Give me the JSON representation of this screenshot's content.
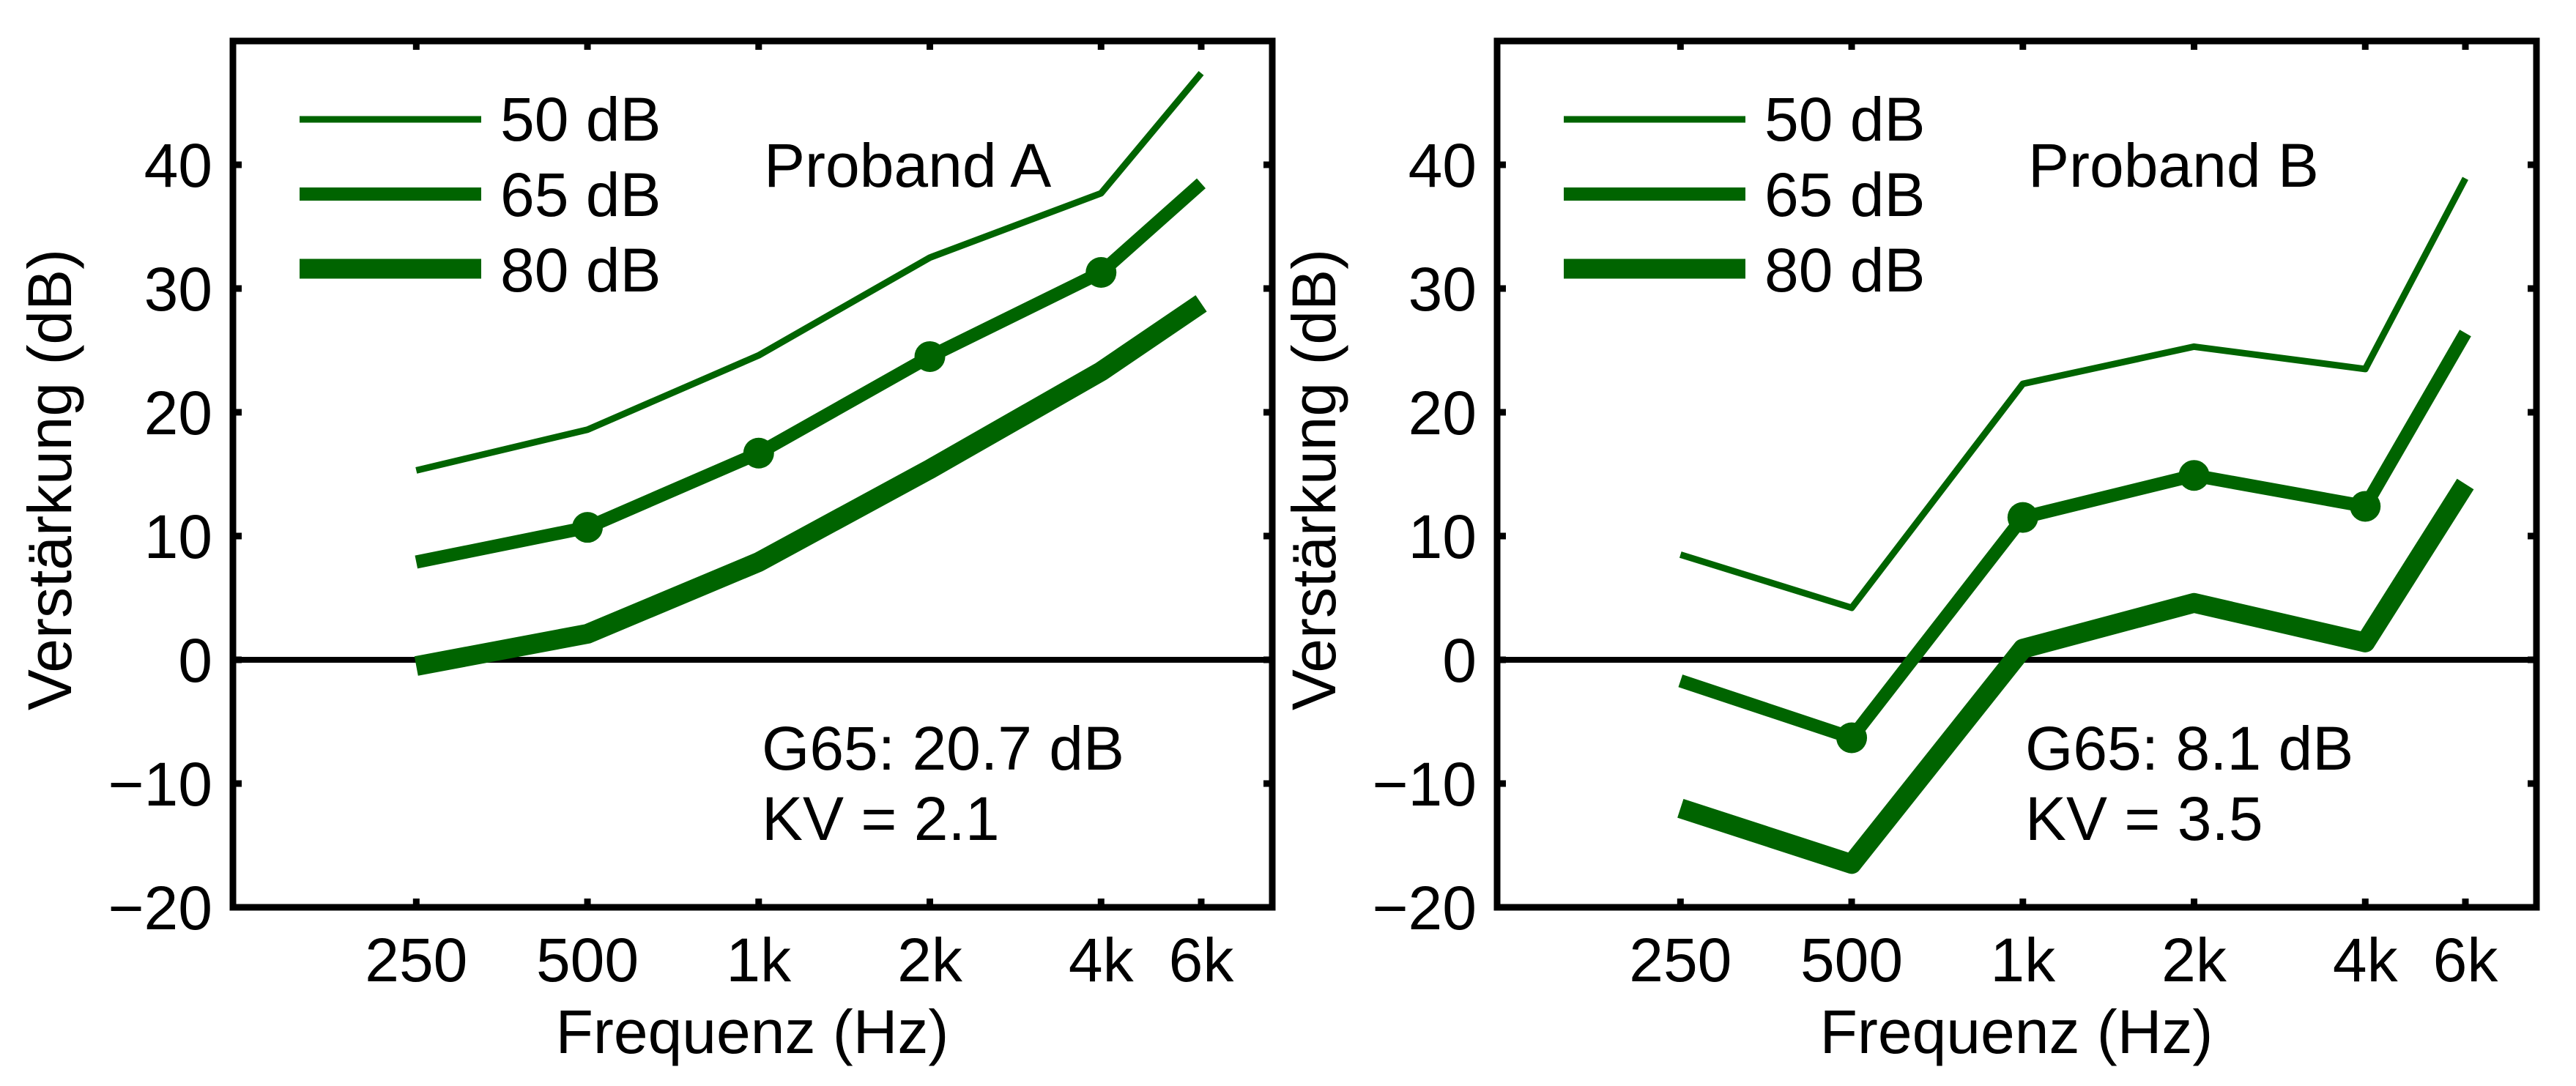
{
  "figure": {
    "line_color": "#006400",
    "axis_color": "#000000"
  },
  "chart_data": [
    {
      "type": "line",
      "title": "Proband A",
      "xlabel": "Frequenz (Hz)",
      "ylabel": "Verstärkung (dB)",
      "xscale": "log",
      "x": [
        250,
        500,
        1000,
        2000,
        4000,
        6000
      ],
      "xtick_labels": [
        "250",
        "500",
        "1k",
        "2k",
        "4k",
        "6k"
      ],
      "xlim": [
        119,
        8000
      ],
      "ylim": [
        -20,
        50
      ],
      "yticks": [
        -20,
        -10,
        0,
        10,
        20,
        30,
        40
      ],
      "ytick_labels": [
        "−20",
        "−10",
        "0",
        "10",
        "20",
        "30",
        "40"
      ],
      "zero_line": true,
      "grid": false,
      "legend_position": "top-left",
      "series": [
        {
          "name": "50 dB",
          "weight": "thin",
          "markers": false,
          "values": [
            15.3,
            18.6,
            24.6,
            32.5,
            37.7,
            47.4
          ]
        },
        {
          "name": "65 dB",
          "weight": "medium",
          "markers": true,
          "values": [
            7.9,
            10.7,
            16.7,
            24.5,
            31.3,
            38.5
          ]
        },
        {
          "name": "80 dB",
          "weight": "thick",
          "markers": false,
          "values": [
            -0.5,
            2.1,
            7.9,
            15.4,
            23.3,
            28.8
          ]
        }
      ],
      "marker_x": [
        500,
        1000,
        2000,
        4000
      ],
      "annotations": {
        "label": "Proband A",
        "g65": "G65: 20.7 dB",
        "kv": "KV = 2.1"
      }
    },
    {
      "type": "line",
      "title": "Proband B",
      "xlabel": "Frequenz (Hz)",
      "ylabel": "Verstärkung (dB)",
      "xscale": "log",
      "x": [
        250,
        500,
        1000,
        2000,
        4000,
        6000
      ],
      "xtick_labels": [
        "250",
        "500",
        "1k",
        "2k",
        "4k",
        "6k"
      ],
      "xlim": [
        119,
        8000
      ],
      "ylim": [
        -20,
        50
      ],
      "yticks": [
        -20,
        -10,
        0,
        10,
        20,
        30,
        40
      ],
      "ytick_labels": [
        "−20",
        "−10",
        "0",
        "10",
        "20",
        "30",
        "40"
      ],
      "zero_line": true,
      "grid": false,
      "legend_position": "top-left",
      "series": [
        {
          "name": "50 dB",
          "weight": "thin",
          "markers": false,
          "values": [
            8.5,
            4.2,
            22.3,
            25.3,
            23.5,
            38.9
          ]
        },
        {
          "name": "65 dB",
          "weight": "medium",
          "markers": true,
          "values": [
            -1.7,
            -6.3,
            11.5,
            14.9,
            12.4,
            26.4
          ]
        },
        {
          "name": "80 dB",
          "weight": "thick",
          "markers": false,
          "values": [
            -12.0,
            -16.5,
            0.9,
            4.6,
            1.4,
            14.2
          ]
        }
      ],
      "marker_x": [
        500,
        1000,
        2000,
        4000
      ],
      "annotations": {
        "label": "Proband B",
        "g65": "G65: 8.1 dB",
        "kv": "KV = 3.5"
      }
    }
  ]
}
